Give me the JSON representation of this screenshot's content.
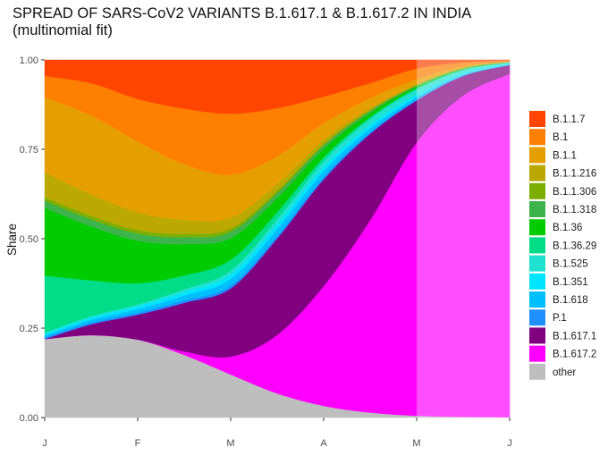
{
  "chart_data": {
    "type": "area",
    "stacked": true,
    "normalized": true,
    "title_line1": "SPREAD OF SARS-CoV2 VARIANTS B.1.617.1 & B.1.617.2 IN INDIA",
    "title_line2": "(multinomial fit)",
    "xlabel": "",
    "ylabel": "Share",
    "x_ticks": [
      {
        "x": 0,
        "label": "J"
      },
      {
        "x": 1,
        "label": "F"
      },
      {
        "x": 2,
        "label": "M"
      },
      {
        "x": 3,
        "label": "A"
      },
      {
        "x": 4,
        "label": "M"
      },
      {
        "x": 5,
        "label": "J"
      }
    ],
    "y_ticks": [
      {
        "y": 0,
        "label": "0.00"
      },
      {
        "y": 0.25,
        "label": "0.25"
      },
      {
        "y": 0.5,
        "label": "0.50"
      },
      {
        "y": 0.75,
        "label": "0.75"
      },
      {
        "y": 1,
        "label": "1.00"
      }
    ],
    "xlim": [
      0,
      5
    ],
    "ylim": [
      0,
      1
    ],
    "projection_start_x": 4.0,
    "legend_position": "right",
    "x": [
      0,
      0.5,
      1,
      1.5,
      2,
      2.5,
      3,
      3.5,
      4,
      4.5,
      5
    ],
    "series": [
      {
        "name": "other",
        "color": "#bebebe",
        "values": [
          0.22,
          0.23,
          0.22,
          0.18,
          0.12,
          0.07,
          0.035,
          0.015,
          0.005,
          0.002,
          0.001
        ]
      },
      {
        "name": "B.1.617.2",
        "color": "#ff00ff",
        "values": [
          0.0,
          0.0,
          0.0,
          0.01,
          0.05,
          0.17,
          0.36,
          0.58,
          0.78,
          0.9,
          0.96
        ]
      },
      {
        "name": "B.1.617.1",
        "color": "#800080",
        "values": [
          0.0,
          0.03,
          0.07,
          0.14,
          0.19,
          0.28,
          0.32,
          0.26,
          0.12,
          0.055,
          0.025
        ]
      },
      {
        "name": "P.1",
        "color": "#1e90ff",
        "values": [
          0.005,
          0.005,
          0.006,
          0.007,
          0.008,
          0.008,
          0.007,
          0.005,
          0.003,
          0.001,
          0.0
        ]
      },
      {
        "name": "B.1.618",
        "color": "#00bfff",
        "values": [
          0.005,
          0.008,
          0.01,
          0.014,
          0.018,
          0.02,
          0.018,
          0.012,
          0.006,
          0.002,
          0.001
        ]
      },
      {
        "name": "B.1.351",
        "color": "#00e5ff",
        "values": [
          0.005,
          0.006,
          0.008,
          0.01,
          0.012,
          0.013,
          0.012,
          0.01,
          0.008,
          0.004,
          0.002
        ]
      },
      {
        "name": "B.1.525",
        "color": "#20e0d0",
        "values": [
          0.003,
          0.004,
          0.005,
          0.008,
          0.012,
          0.016,
          0.018,
          0.018,
          0.015,
          0.01,
          0.005
        ]
      },
      {
        "name": "B.1.36.29",
        "color": "#00dd88",
        "values": [
          0.16,
          0.1,
          0.06,
          0.04,
          0.03,
          0.02,
          0.012,
          0.006,
          0.003,
          0.001,
          0.0
        ]
      },
      {
        "name": "B.1.36",
        "color": "#00cc00",
        "values": [
          0.19,
          0.15,
          0.12,
          0.09,
          0.06,
          0.04,
          0.025,
          0.012,
          0.005,
          0.002,
          0.001
        ]
      },
      {
        "name": "B.1.1.318",
        "color": "#3cb44b",
        "values": [
          0.02,
          0.02,
          0.02,
          0.02,
          0.018,
          0.015,
          0.01,
          0.006,
          0.003,
          0.001,
          0.0
        ]
      },
      {
        "name": "B.1.1.306",
        "color": "#7cae00",
        "values": [
          0.01,
          0.01,
          0.01,
          0.01,
          0.009,
          0.007,
          0.005,
          0.003,
          0.001,
          0.001,
          0.0
        ]
      },
      {
        "name": "B.1.1.216",
        "color": "#bba800",
        "values": [
          0.07,
          0.06,
          0.05,
          0.04,
          0.03,
          0.02,
          0.012,
          0.006,
          0.002,
          0.001,
          0.0
        ]
      },
      {
        "name": "B.1.1",
        "color": "#e69f00",
        "values": [
          0.21,
          0.22,
          0.2,
          0.16,
          0.12,
          0.08,
          0.05,
          0.03,
          0.015,
          0.005,
          0.001
        ]
      },
      {
        "name": "B.1",
        "color": "#ff7f00",
        "values": [
          0.06,
          0.09,
          0.12,
          0.16,
          0.17,
          0.14,
          0.08,
          0.045,
          0.03,
          0.01,
          0.002
        ]
      },
      {
        "name": "B.1.1.7",
        "color": "#ff4500",
        "values": [
          0.045,
          0.065,
          0.11,
          0.14,
          0.15,
          0.14,
          0.11,
          0.07,
          0.025,
          0.007,
          0.002
        ]
      }
    ],
    "legend_order": [
      "B.1.1.7",
      "B.1",
      "B.1.1",
      "B.1.1.216",
      "B.1.1.306",
      "B.1.1.318",
      "B.1.36",
      "B.1.36.29",
      "B.1.525",
      "B.1.351",
      "B.1.618",
      "P.1",
      "B.1.617.1",
      "B.1.617.2",
      "other"
    ]
  }
}
